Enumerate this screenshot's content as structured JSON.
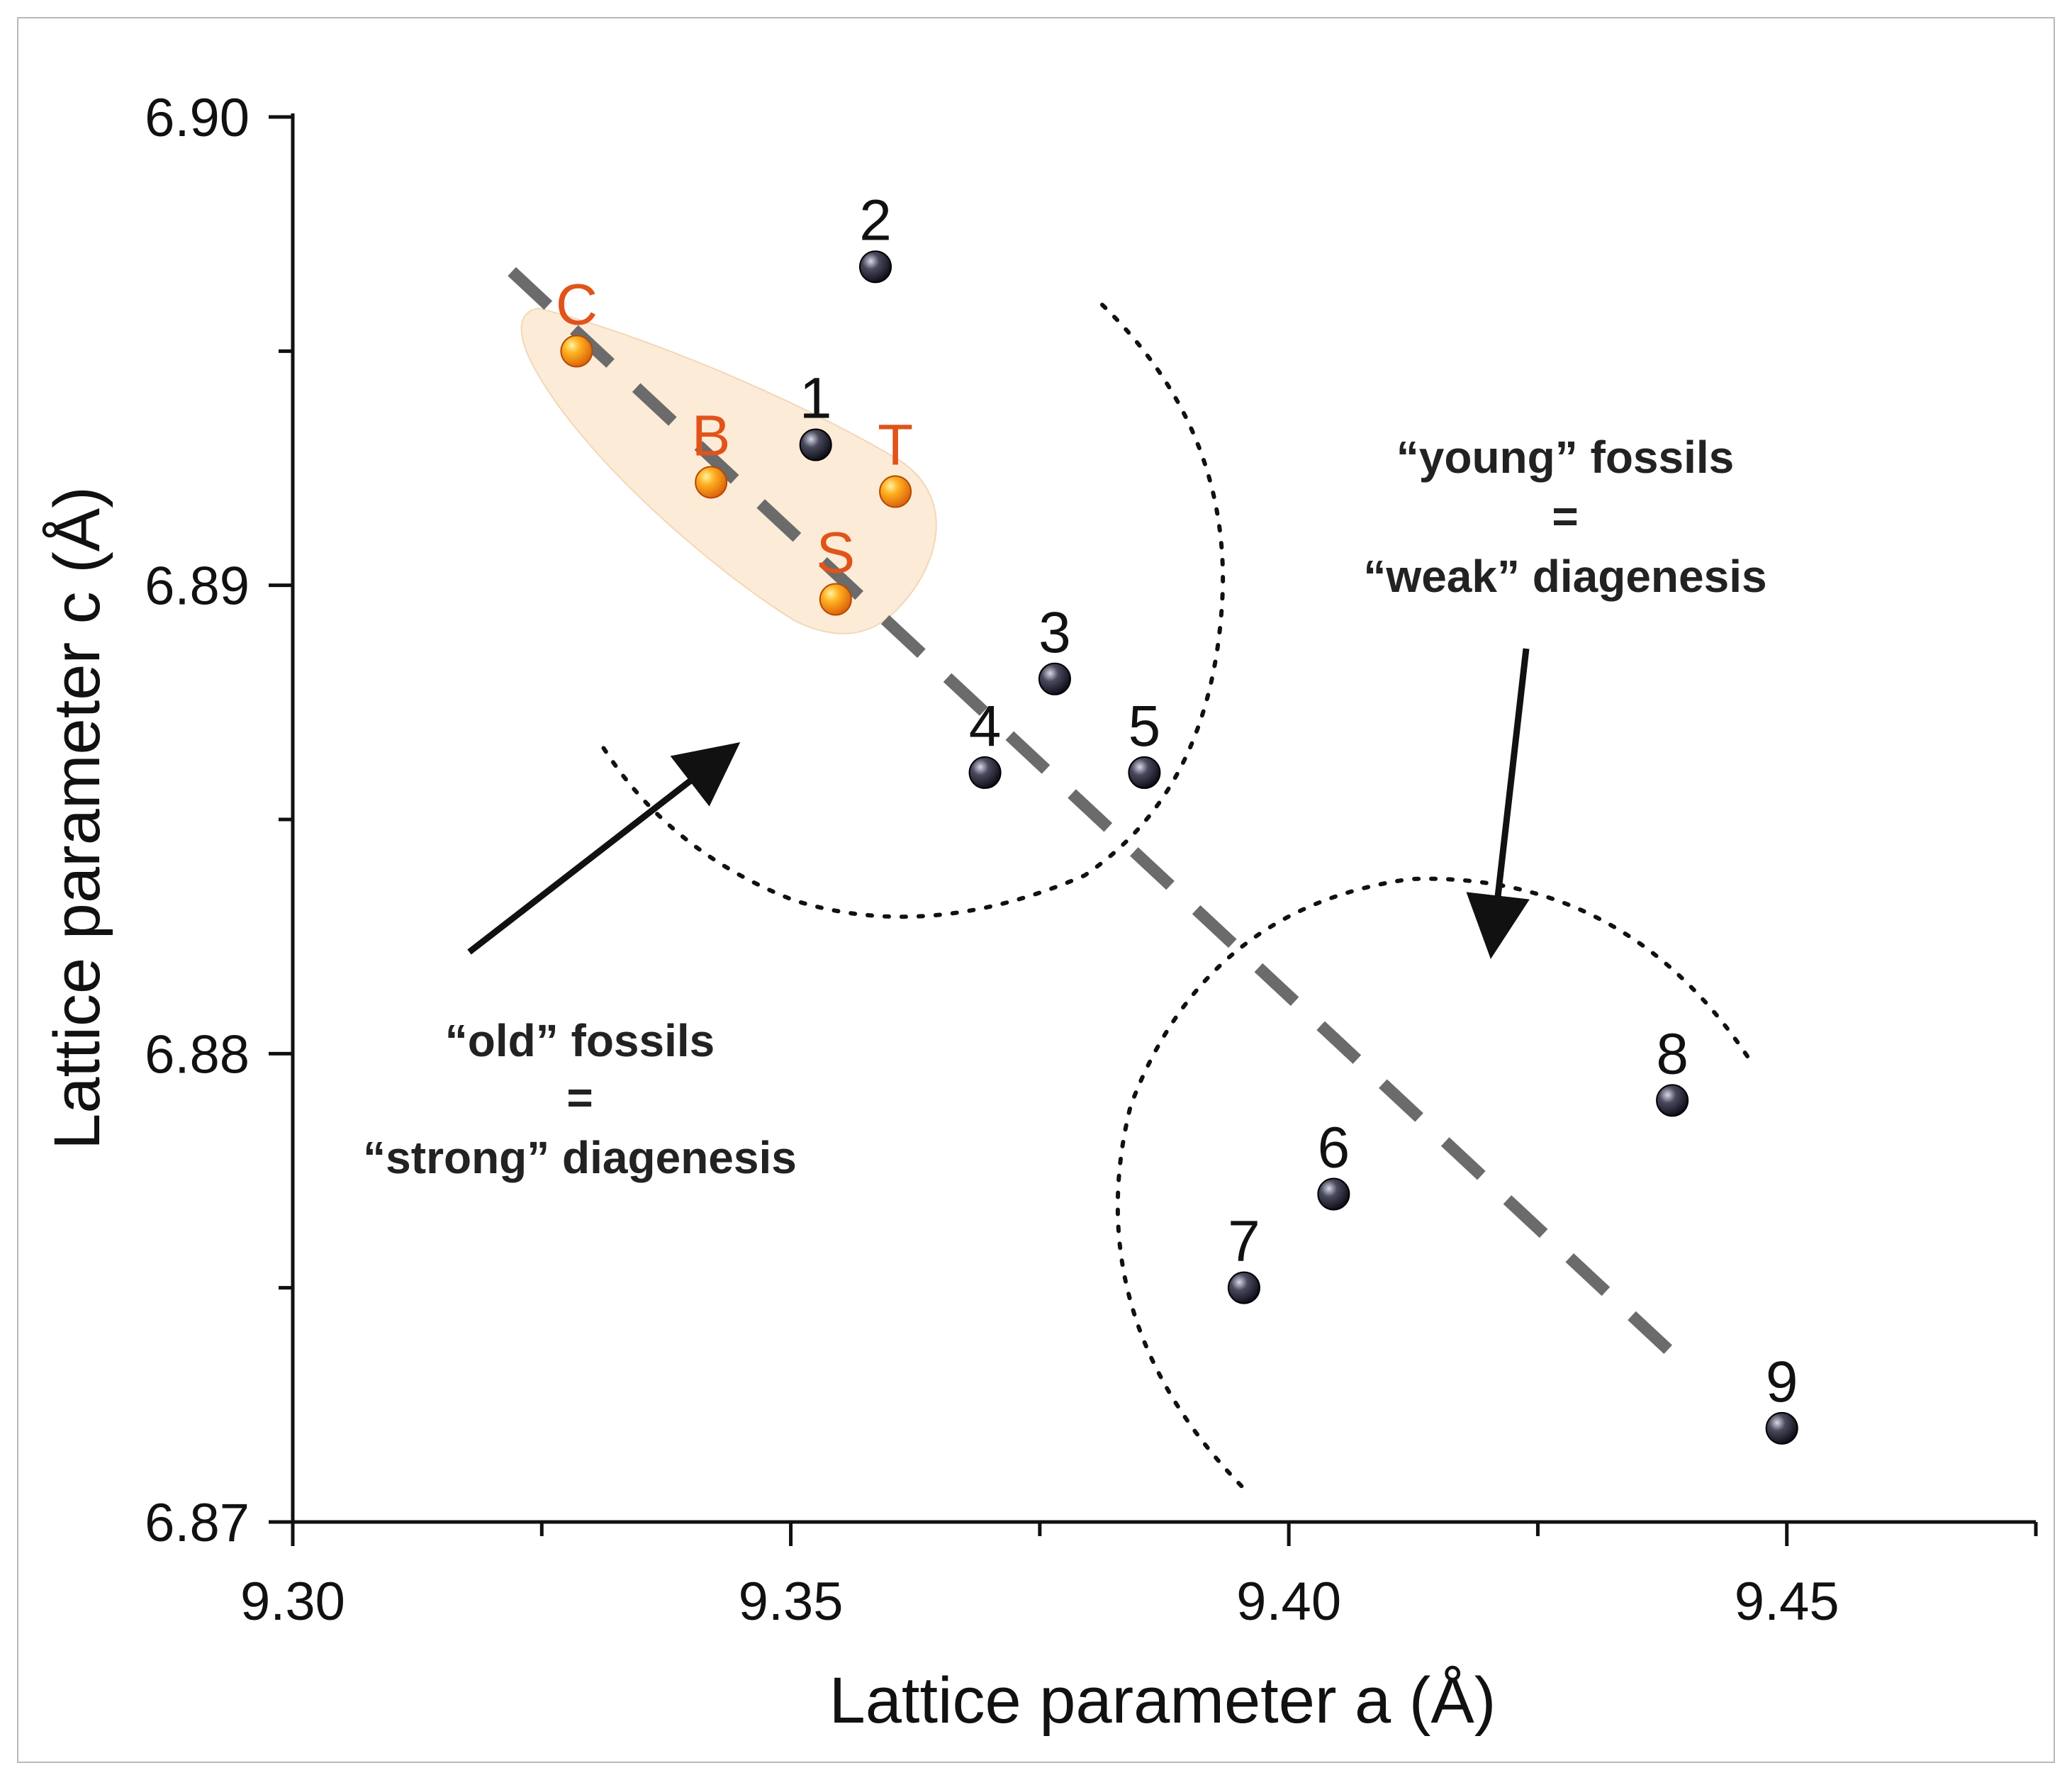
{
  "chart_data": {
    "type": "scatter",
    "xlabel": "Lattice parameter a (Å)",
    "ylabel": "Lattice parameter c (Å)",
    "xlim": [
      9.3,
      9.475
    ],
    "ylim": [
      6.87,
      6.9
    ],
    "x_ticks": [
      "9.30",
      "9.35",
      "9.40",
      "9.45"
    ],
    "y_ticks": [
      "6.87",
      "6.88",
      "6.89",
      "6.90"
    ],
    "series": [
      {
        "points": [
          {
            "label": "1",
            "x": 9.3525,
            "y": 6.893
          },
          {
            "label": "2",
            "x": 9.3585,
            "y": 6.8968
          },
          {
            "label": "3",
            "x": 9.3765,
            "y": 6.888
          },
          {
            "label": "4",
            "x": 9.3695,
            "y": 6.886
          },
          {
            "label": "5",
            "x": 9.3855,
            "y": 6.886
          },
          {
            "label": "6",
            "x": 9.4045,
            "y": 6.877
          },
          {
            "label": "7",
            "x": 9.3955,
            "y": 6.875
          },
          {
            "label": "8",
            "x": 9.4385,
            "y": 6.879
          },
          {
            "label": "9",
            "x": 9.4495,
            "y": 6.872
          }
        ],
        "color": "#1a1a2a"
      },
      {
        "points": [
          {
            "label": "C",
            "x": 9.3285,
            "y": 6.895
          },
          {
            "label": "B",
            "x": 9.342,
            "y": 6.8922
          },
          {
            "label": "T",
            "x": 9.3605,
            "y": 6.892
          },
          {
            "label": "S",
            "x": 9.3545,
            "y": 6.8897
          }
        ],
        "color": "#f08c10",
        "label_color": "#e0531a"
      }
    ],
    "trend_line": {
      "from": {
        "x": 9.322,
        "y": 6.8967
      },
      "to": {
        "x": 9.4395,
        "y": 6.8734
      }
    },
    "annotations": {
      "old": [
        "“old” fossils",
        "=",
        "“strong” diagenesis"
      ],
      "young": [
        "“young” fossils",
        "=",
        "“weak” diagenesis"
      ]
    },
    "grid": false,
    "legend": "none"
  }
}
